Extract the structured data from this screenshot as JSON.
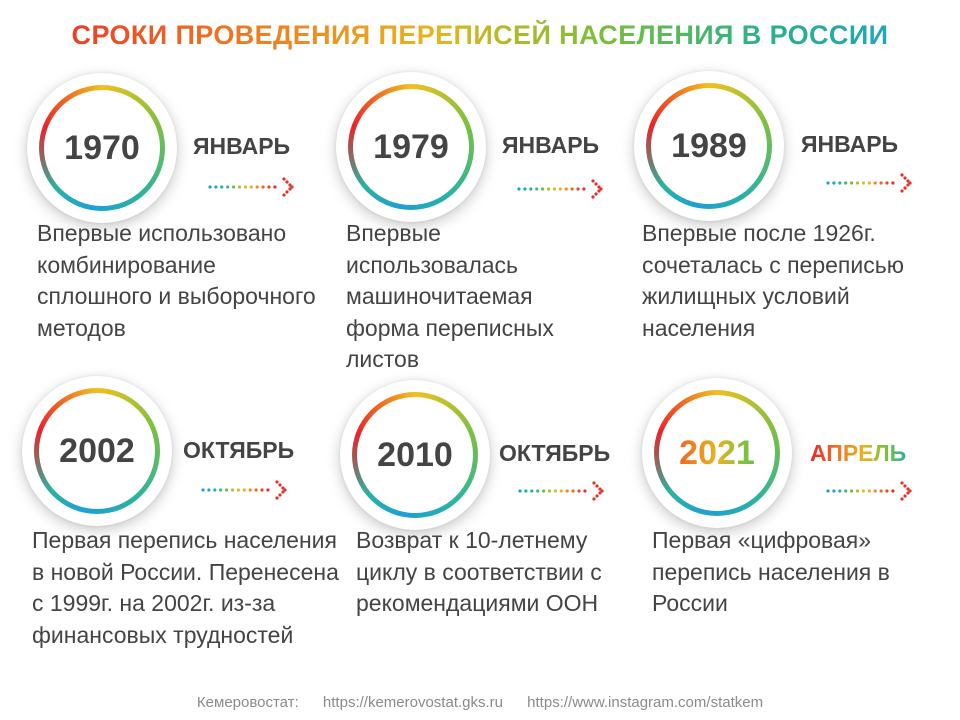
{
  "title": "СРОКИ ПРОВЕДЕНИЯ ПЕРЕПИСЕЙ НАСЕЛЕНИЯ В РОССИИ",
  "censuses": [
    {
      "year": "1970",
      "month": "ЯНВАРЬ",
      "description": "Впервые использовано комбинирование сплошного и выборочного методов"
    },
    {
      "year": "1979",
      "month": "ЯНВАРЬ",
      "description": "Впервые использовалась машиночитаемая форма переписных листов"
    },
    {
      "year": "1989",
      "month": "ЯНВАРЬ",
      "description": "Впервые после 1926г. сочеталась с переписью жилищных условий населения"
    },
    {
      "year": "2002",
      "month": "ОКТЯБРЬ",
      "description": "Первая перепись населения в новой России. Перенесена с 1999г. на 2002г. из-за финансовых трудностей"
    },
    {
      "year": "2010",
      "month": "ОКТЯБРЬ",
      "description": "Возврат к 10-летнему циклу в соответствии с рекомендациями ООН"
    },
    {
      "year": "2021",
      "month": "АПРЕЛЬ",
      "description": "Первая «цифровая» перепись населения в России"
    }
  ],
  "footer": {
    "org": "Кемеровостат:",
    "site": "https://kemerovostat.gks.ru",
    "instagram": "https://www.instagram.com/statkem"
  }
}
